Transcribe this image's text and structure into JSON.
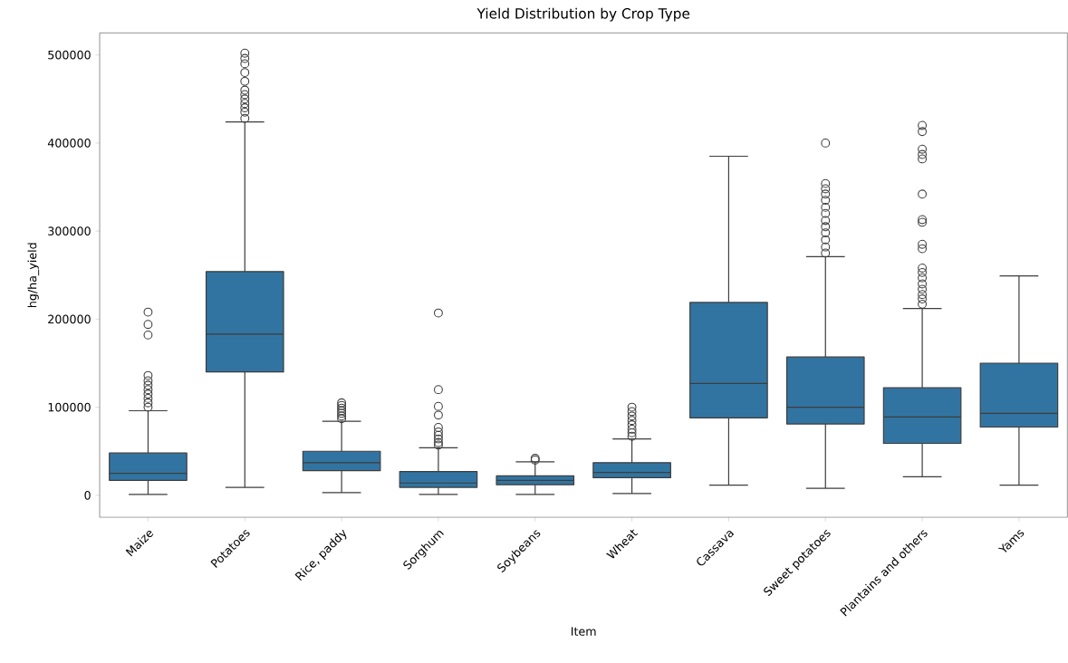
{
  "chart_data": {
    "type": "box",
    "title": "Yield Distribution by Crop Type",
    "xlabel": "Item",
    "ylabel": "hg/ha_yield",
    "categories": [
      "Maize",
      "Potatoes",
      "Rice, paddy",
      "Sorghum",
      "Soybeans",
      "Wheat",
      "Cassava",
      "Sweet potatoes",
      "Plantains and others",
      "Yams"
    ],
    "color": "#3274a1",
    "ylim": [
      -25000,
      525000
    ],
    "yticks": [
      0,
      100000,
      200000,
      300000,
      400000,
      500000
    ],
    "boxes": [
      {
        "low": 1000,
        "q1": 17000,
        "median": 25000,
        "q3": 48000,
        "high": 96000,
        "outliers": [
          100000,
          105000,
          110000,
          115000,
          120000,
          125000,
          130000,
          136000,
          182000,
          194000,
          208000
        ]
      },
      {
        "low": 9000,
        "q1": 140000,
        "median": 183000,
        "q3": 254000,
        "high": 424000,
        "outliers": [
          428000,
          435000,
          440000,
          445000,
          450000,
          455000,
          460000,
          470000,
          480000,
          490000,
          496000,
          502000
        ]
      },
      {
        "low": 3000,
        "q1": 28000,
        "median": 37000,
        "q3": 50000,
        "high": 84000,
        "outliers": [
          87000,
          90000,
          93000,
          96000,
          99000,
          102000,
          105000
        ]
      },
      {
        "low": 1000,
        "q1": 9000,
        "median": 14000,
        "q3": 27000,
        "high": 54000,
        "outliers": [
          57000,
          60000,
          64000,
          68000,
          72000,
          77000,
          91000,
          101000,
          120000,
          207000
        ]
      },
      {
        "low": 1000,
        "q1": 12000,
        "median": 17000,
        "q3": 22000,
        "high": 38000,
        "outliers": [
          40000,
          42000
        ]
      },
      {
        "low": 2000,
        "q1": 20000,
        "median": 26000,
        "q3": 37000,
        "high": 64000,
        "outliers": [
          67000,
          71000,
          75000,
          80000,
          85000,
          90000,
          95000,
          100000
        ]
      },
      {
        "low": 11500,
        "q1": 88000,
        "median": 127000,
        "q3": 219000,
        "high": 385000
      },
      {
        "low": 8000,
        "q1": 81000,
        "median": 100000,
        "q3": 157000,
        "high": 271000,
        "outliers": [
          275000,
          282000,
          290000,
          298000,
          305000,
          312000,
          320000,
          327000,
          335000,
          342000,
          348000,
          354000,
          400000
        ]
      },
      {
        "low": 21000,
        "q1": 59000,
        "median": 89000,
        "q3": 122000,
        "high": 212000,
        "outliers": [
          217000,
          223000,
          228000,
          234000,
          240000,
          247000,
          253000,
          258000,
          280000,
          285000,
          310000,
          313000,
          342000,
          382000,
          387000,
          393000,
          413000,
          420000
        ]
      },
      {
        "low": 11500,
        "q1": 77500,
        "median": 93000,
        "q3": 150000,
        "high": 249000
      }
    ]
  }
}
